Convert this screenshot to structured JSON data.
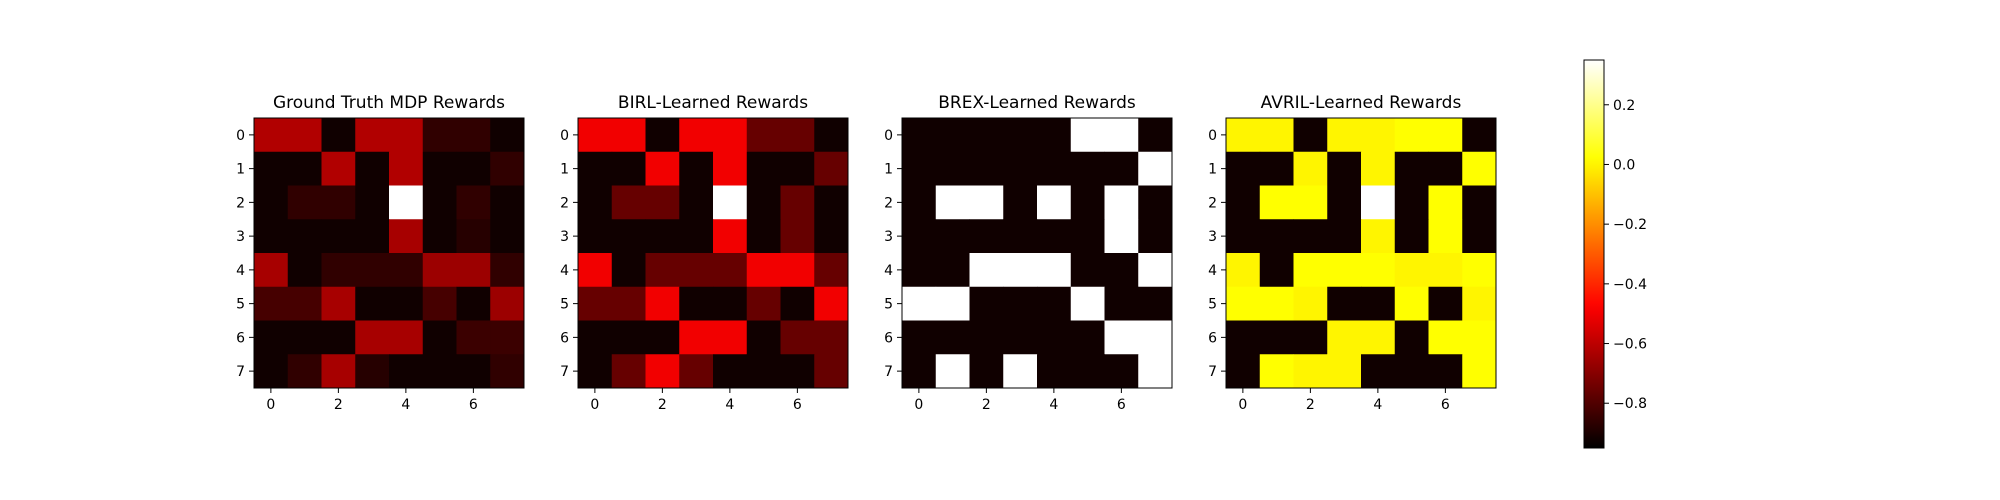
{
  "chart_data": [
    {
      "type": "heatmap",
      "title": "Ground Truth MDP Rewards",
      "x_ticks": [
        "0",
        "2",
        "4",
        "6"
      ],
      "y_ticks": [
        "0",
        "1",
        "2",
        "3",
        "4",
        "5",
        "6",
        "7"
      ],
      "values": [
        [
          -0.62,
          -0.62,
          -0.92,
          -0.62,
          -0.62,
          -0.86,
          -0.86,
          -0.92
        ],
        [
          -0.92,
          -0.92,
          -0.62,
          -0.92,
          -0.62,
          -0.92,
          -0.92,
          -0.86
        ],
        [
          -0.92,
          -0.86,
          -0.86,
          -0.92,
          0.35,
          -0.92,
          -0.86,
          -0.92
        ],
        [
          -0.92,
          -0.92,
          -0.92,
          -0.92,
          -0.64,
          -0.92,
          -0.88,
          -0.92
        ],
        [
          -0.64,
          -0.92,
          -0.86,
          -0.86,
          -0.86,
          -0.66,
          -0.66,
          -0.86
        ],
        [
          -0.82,
          -0.82,
          -0.64,
          -0.92,
          -0.92,
          -0.82,
          -0.92,
          -0.66
        ],
        [
          -0.92,
          -0.92,
          -0.92,
          -0.64,
          -0.64,
          -0.92,
          -0.84,
          -0.84
        ],
        [
          -0.92,
          -0.86,
          -0.64,
          -0.88,
          -0.92,
          -0.92,
          -0.92,
          -0.86
        ]
      ]
    },
    {
      "type": "heatmap",
      "title": "BIRL-Learned Rewards",
      "x_ticks": [
        "0",
        "2",
        "4",
        "6"
      ],
      "y_ticks": [
        "0",
        "1",
        "2",
        "3",
        "4",
        "5",
        "6",
        "7"
      ],
      "values": [
        [
          -0.5,
          -0.5,
          -0.92,
          -0.5,
          -0.5,
          -0.76,
          -0.76,
          -0.92
        ],
        [
          -0.92,
          -0.92,
          -0.5,
          -0.92,
          -0.5,
          -0.92,
          -0.92,
          -0.76
        ],
        [
          -0.92,
          -0.76,
          -0.76,
          -0.92,
          0.35,
          -0.92,
          -0.76,
          -0.92
        ],
        [
          -0.92,
          -0.92,
          -0.92,
          -0.92,
          -0.5,
          -0.92,
          -0.76,
          -0.92
        ],
        [
          -0.5,
          -0.92,
          -0.76,
          -0.76,
          -0.76,
          -0.5,
          -0.5,
          -0.76
        ],
        [
          -0.76,
          -0.76,
          -0.5,
          -0.92,
          -0.92,
          -0.76,
          -0.92,
          -0.5
        ],
        [
          -0.92,
          -0.92,
          -0.92,
          -0.5,
          -0.5,
          -0.92,
          -0.76,
          -0.76
        ],
        [
          -0.92,
          -0.76,
          -0.5,
          -0.76,
          -0.92,
          -0.92,
          -0.92,
          -0.76
        ]
      ]
    },
    {
      "type": "heatmap",
      "title": "BREX-Learned Rewards",
      "x_ticks": [
        "0",
        "2",
        "4",
        "6"
      ],
      "y_ticks": [
        "0",
        "1",
        "2",
        "3",
        "4",
        "5",
        "6",
        "7"
      ],
      "values": [
        [
          -0.92,
          -0.92,
          -0.92,
          -0.92,
          -0.92,
          0.35,
          0.35,
          -0.92
        ],
        [
          -0.92,
          -0.92,
          -0.92,
          -0.92,
          -0.92,
          -0.92,
          -0.92,
          0.35
        ],
        [
          -0.92,
          0.35,
          0.35,
          -0.92,
          0.35,
          -0.92,
          0.35,
          -0.92
        ],
        [
          -0.92,
          -0.92,
          -0.92,
          -0.92,
          -0.92,
          -0.92,
          0.35,
          -0.92
        ],
        [
          -0.92,
          -0.92,
          0.35,
          0.35,
          0.35,
          -0.92,
          -0.92,
          0.35
        ],
        [
          0.35,
          0.35,
          -0.92,
          -0.92,
          -0.92,
          0.35,
          -0.92,
          -0.92
        ],
        [
          -0.92,
          -0.92,
          -0.92,
          -0.92,
          -0.92,
          -0.92,
          0.35,
          0.35
        ],
        [
          -0.92,
          0.35,
          -0.92,
          0.35,
          -0.92,
          -0.92,
          -0.92,
          0.35
        ]
      ]
    },
    {
      "type": "heatmap",
      "title": "AVRIL-Learned Rewards",
      "x_ticks": [
        "0",
        "2",
        "4",
        "6"
      ],
      "y_ticks": [
        "0",
        "1",
        "2",
        "3",
        "4",
        "5",
        "6",
        "7"
      ],
      "values": [
        [
          0.0,
          0.0,
          -0.92,
          0.0,
          0.0,
          0.02,
          0.02,
          -0.92
        ],
        [
          -0.92,
          -0.92,
          0.0,
          -0.92,
          0.0,
          -0.92,
          -0.92,
          0.02
        ],
        [
          -0.92,
          0.02,
          0.02,
          -0.92,
          0.35,
          -0.92,
          0.02,
          -0.92
        ],
        [
          -0.92,
          -0.92,
          -0.92,
          -0.92,
          0.0,
          -0.92,
          0.02,
          -0.92
        ],
        [
          0.0,
          -0.92,
          0.02,
          0.02,
          0.02,
          0.0,
          0.0,
          0.02
        ],
        [
          0.02,
          0.02,
          0.0,
          -0.92,
          -0.92,
          0.02,
          -0.92,
          0.0
        ],
        [
          -0.92,
          -0.92,
          -0.92,
          0.0,
          0.0,
          -0.92,
          0.02,
          0.02
        ],
        [
          -0.92,
          0.02,
          0.0,
          0.0,
          -0.92,
          -0.92,
          -0.92,
          0.02
        ]
      ]
    }
  ],
  "colorbar": {
    "colormap": "hot",
    "vmin": -0.95,
    "vmax": 0.35,
    "ticks": [
      0.2,
      0.0,
      -0.2,
      -0.4,
      -0.6,
      -0.8
    ],
    "tick_labels": [
      "0.2",
      "0.0",
      "−0.2",
      "−0.4",
      "−0.6",
      "−0.8"
    ]
  }
}
